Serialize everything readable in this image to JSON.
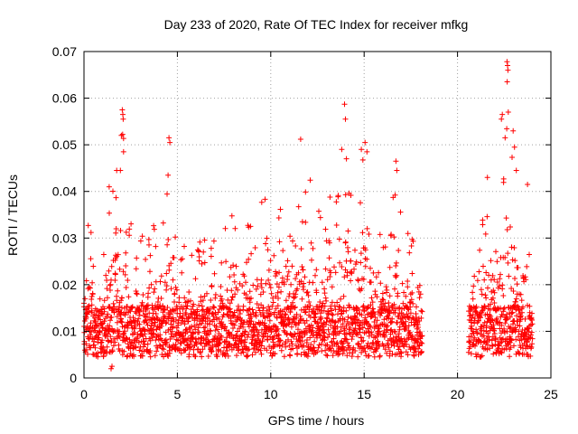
{
  "chart_data": {
    "type": "scatter",
    "title": "Day 233 of 2020, Rate Of TEC Index for receiver mfkg",
    "xlabel": "GPS time / hours",
    "ylabel": "ROTI / TECUs",
    "xlim": [
      0,
      25
    ],
    "ylim": [
      0,
      0.07
    ],
    "xticks": [
      "0",
      "5",
      "10",
      "15",
      "20",
      "25"
    ],
    "yticks": [
      "0",
      "0.01",
      "0.02",
      "0.03",
      "0.04",
      "0.05",
      "0.06",
      "0.07"
    ],
    "grid": true,
    "marker": "plus",
    "color": "#ff0000",
    "series": [
      {
        "segments": [
          {
            "x_start": 0.0,
            "x_end": 18.1,
            "x_step": 0.025,
            "typical": 0.011,
            "envelope": [
              [
                0.0,
                0.024
              ],
              [
                0.3,
                0.036
              ],
              [
                0.6,
                0.031
              ],
              [
                0.9,
                0.028
              ],
              [
                1.2,
                0.04
              ],
              [
                1.5,
                0.044
              ],
              [
                1.8,
                0.044
              ],
              [
                2.1,
                0.057
              ],
              [
                2.4,
                0.034
              ],
              [
                2.8,
                0.033
              ],
              [
                3.2,
                0.03
              ],
              [
                3.6,
                0.034
              ],
              [
                4.0,
                0.036
              ],
              [
                4.5,
                0.051
              ],
              [
                4.8,
                0.036
              ],
              [
                5.2,
                0.03
              ],
              [
                5.6,
                0.028
              ],
              [
                6.0,
                0.029
              ],
              [
                6.5,
                0.03
              ],
              [
                7.0,
                0.036
              ],
              [
                7.5,
                0.031
              ],
              [
                8.0,
                0.04
              ],
              [
                8.5,
                0.042
              ],
              [
                9.0,
                0.034
              ],
              [
                9.5,
                0.038
              ],
              [
                10.0,
                0.04
              ],
              [
                10.5,
                0.039
              ],
              [
                11.0,
                0.034
              ],
              [
                11.5,
                0.038
              ],
              [
                12.0,
                0.045
              ],
              [
                12.5,
                0.039
              ],
              [
                13.0,
                0.036
              ],
              [
                13.5,
                0.044
              ],
              [
                13.9,
                0.057
              ],
              [
                14.3,
                0.041
              ],
              [
                14.7,
                0.042
              ],
              [
                15.0,
                0.05
              ],
              [
                15.4,
                0.04
              ],
              [
                15.8,
                0.034
              ],
              [
                16.2,
                0.038
              ],
              [
                16.6,
                0.046
              ],
              [
                17.0,
                0.038
              ],
              [
                17.5,
                0.033
              ],
              [
                18.1,
                0.035
              ]
            ],
            "peaks": [
              {
                "x": 2.05,
                "y": 0.0575
              },
              {
                "x": 2.08,
                "y": 0.0565
              },
              {
                "x": 2.1,
                "y": 0.0555
              },
              {
                "x": 2.0,
                "y": 0.052
              },
              {
                "x": 2.12,
                "y": 0.0485
              },
              {
                "x": 1.75,
                "y": 0.0445
              },
              {
                "x": 1.95,
                "y": 0.0445
              },
              {
                "x": 1.35,
                "y": 0.041
              },
              {
                "x": 4.55,
                "y": 0.0515
              },
              {
                "x": 4.6,
                "y": 0.0505
              },
              {
                "x": 4.5,
                "y": 0.0435
              },
              {
                "x": 11.6,
                "y": 0.0512
              },
              {
                "x": 13.95,
                "y": 0.0587
              },
              {
                "x": 14.0,
                "y": 0.0555
              },
              {
                "x": 13.8,
                "y": 0.049
              },
              {
                "x": 14.05,
                "y": 0.047
              },
              {
                "x": 15.05,
                "y": 0.0505
              },
              {
                "x": 14.85,
                "y": 0.049
              },
              {
                "x": 15.15,
                "y": 0.0485
              },
              {
                "x": 16.7,
                "y": 0.0465
              },
              {
                "x": 16.75,
                "y": 0.0445
              },
              {
                "x": 1.45,
                "y": 0.002
              },
              {
                "x": 1.5,
                "y": 0.0025
              }
            ]
          },
          {
            "x_start": 20.6,
            "x_end": 24.0,
            "x_step": 0.025,
            "typical": 0.011,
            "envelope": [
              [
                20.6,
                0.024
              ],
              [
                21.0,
                0.026
              ],
              [
                21.4,
                0.036
              ],
              [
                21.8,
                0.042
              ],
              [
                22.1,
                0.034
              ],
              [
                22.4,
                0.047
              ],
              [
                22.7,
                0.066
              ],
              [
                23.0,
                0.05
              ],
              [
                23.3,
                0.045
              ],
              [
                23.6,
                0.038
              ],
              [
                24.0,
                0.03
              ]
            ],
            "peaks": [
              {
                "x": 22.65,
                "y": 0.0678
              },
              {
                "x": 22.68,
                "y": 0.067
              },
              {
                "x": 22.7,
                "y": 0.066
              },
              {
                "x": 22.66,
                "y": 0.0635
              },
              {
                "x": 22.72,
                "y": 0.057
              },
              {
                "x": 22.4,
                "y": 0.0565
              },
              {
                "x": 22.35,
                "y": 0.0555
              },
              {
                "x": 22.98,
                "y": 0.053
              },
              {
                "x": 22.55,
                "y": 0.0515
              },
              {
                "x": 23.05,
                "y": 0.0495
              },
              {
                "x": 23.15,
                "y": 0.0445
              },
              {
                "x": 21.6,
                "y": 0.043
              },
              {
                "x": 23.75,
                "y": 0.0415
              }
            ]
          }
        ]
      }
    ]
  }
}
